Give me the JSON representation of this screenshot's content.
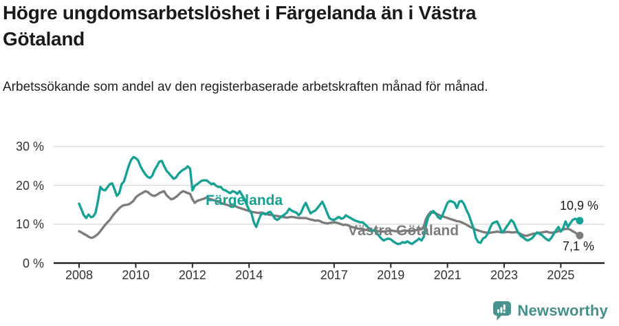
{
  "header": {
    "title": "Högre ungdomsarbetslöshet i Färgelanda än i Västra Götaland",
    "subtitle": "Arbetssökande som andel av den registerbaserade arbetskraften månad för månad."
  },
  "chart_data": {
    "type": "line",
    "title": "Högre ungdomsarbetslöshet i Färgelanda än i Västra Götaland",
    "subtitle": "Arbetssökande som andel av den registerbaserade arbetskraften månad för månad.",
    "unit": "%",
    "frequency": "monthly",
    "start": "2008-01",
    "end": "2025-09",
    "ylim": [
      0,
      30
    ],
    "yticks": [
      0,
      10,
      20,
      30
    ],
    "ytick_labels": [
      "0 %",
      "10 %",
      "20 %",
      "30 %"
    ],
    "xtick_years": [
      2008,
      2010,
      2012,
      2014,
      2017,
      2019,
      2021,
      2023,
      2025
    ],
    "xtick_labels": [
      "2008",
      "2010",
      "2012",
      "2014",
      "2017",
      "2019",
      "2021",
      "2023",
      "2025"
    ],
    "grid": "horizontal",
    "legend": "inline-series-labels",
    "colors": {
      "grid": "#DCDCDC",
      "axis": "#262626",
      "tick_text": "#333333"
    },
    "series": [
      {
        "name": "Färgelanda",
        "color": "#15A295",
        "end_label": "10,9 %",
        "end_value": 10.9,
        "values": [
          15.3,
          13.8,
          12.3,
          11.6,
          12.5,
          11.8,
          12.0,
          13.0,
          16.0,
          19.6,
          18.9,
          18.7,
          19.5,
          20.3,
          20.5,
          19.0,
          17.3,
          18.0,
          20.3,
          21.0,
          23.0,
          25.0,
          26.5,
          27.3,
          27.0,
          26.4,
          24.9,
          23.8,
          22.9,
          22.2,
          21.9,
          22.5,
          24.0,
          25.0,
          26.1,
          26.3,
          25.0,
          23.8,
          23.1,
          22.4,
          21.7,
          22.0,
          22.9,
          23.5,
          24.0,
          24.3,
          24.9,
          24.3,
          18.7,
          19.9,
          20.3,
          20.8,
          21.2,
          21.3,
          21.3,
          20.8,
          20.3,
          20.5,
          19.9,
          19.6,
          19.6,
          18.9,
          18.7,
          18.3,
          18.0,
          18.5,
          18.3,
          17.8,
          18.5,
          17.5,
          16.5,
          15.0,
          13.7,
          12.8,
          10.5,
          9.3,
          11.0,
          12.5,
          12.8,
          12.5,
          13.0,
          13.2,
          12.3,
          11.4,
          11.1,
          11.6,
          12.1,
          12.5,
          13.0,
          14.0,
          13.5,
          13.2,
          13.0,
          12.3,
          13.0,
          14.5,
          15.5,
          14.1,
          12.8,
          13.2,
          13.5,
          14.2,
          15.0,
          15.8,
          14.5,
          13.0,
          11.6,
          11.2,
          11.1,
          11.5,
          11.9,
          11.4,
          11.6,
          12.3,
          11.9,
          11.6,
          11.2,
          10.9,
          10.7,
          10.5,
          10.5,
          10.0,
          9.4,
          8.8,
          8.2,
          8.5,
          7.8,
          7.0,
          6.3,
          5.8,
          6.1,
          6.3,
          6.1,
          5.6,
          5.2,
          4.9,
          5.0,
          5.4,
          5.2,
          5.6,
          5.2,
          4.9,
          5.4,
          5.8,
          6.3,
          5.8,
          6.8,
          10.0,
          12.0,
          12.8,
          13.4,
          12.8,
          11.8,
          11.4,
          12.5,
          14.0,
          15.5,
          16.0,
          15.8,
          15.5,
          14.2,
          15.8,
          16.0,
          15.2,
          13.7,
          12.5,
          10.7,
          9.0,
          6.5,
          5.4,
          5.2,
          6.3,
          6.6,
          7.5,
          9.0,
          10.2,
          10.5,
          10.7,
          9.5,
          7.9,
          8.4,
          9.3,
          10.2,
          11.1,
          10.5,
          9.0,
          7.8,
          7.0,
          6.6,
          6.1,
          5.8,
          6.1,
          6.5,
          7.3,
          7.9,
          7.5,
          7.2,
          6.6,
          6.1,
          5.8,
          6.5,
          7.5,
          8.4,
          9.3,
          8.1,
          9.0,
          10.7,
          9.3,
          10.2,
          11.1,
          11.4,
          11.2,
          10.9
        ]
      },
      {
        "name": "Västra Götaland",
        "color": "#7C7C7C",
        "end_label": "7,1 %",
        "end_value": 7.1,
        "values": [
          8.2,
          7.9,
          7.5,
          7.2,
          6.8,
          6.5,
          6.6,
          7.0,
          7.5,
          8.2,
          9.0,
          9.8,
          10.5,
          11.1,
          12.0,
          12.8,
          13.4,
          14.1,
          14.6,
          14.9,
          15.0,
          15.1,
          15.5,
          16.0,
          16.9,
          17.4,
          17.8,
          18.1,
          18.5,
          18.3,
          17.8,
          17.4,
          17.3,
          17.6,
          18.0,
          18.3,
          18.5,
          17.5,
          16.9,
          16.4,
          16.6,
          17.0,
          17.5,
          18.1,
          18.5,
          18.3,
          18.0,
          17.8,
          16.4,
          15.5,
          16.0,
          16.2,
          16.4,
          16.6,
          16.9,
          16.6,
          16.4,
          16.2,
          16.0,
          15.8,
          15.5,
          15.3,
          15.1,
          14.9,
          14.7,
          14.9,
          14.7,
          14.4,
          14.2,
          14.0,
          13.8,
          13.6,
          13.4,
          13.2,
          13.1,
          13.0,
          12.9,
          13.0,
          12.9,
          12.7,
          12.5,
          12.4,
          12.3,
          12.2,
          12.1,
          12.0,
          11.9,
          11.8,
          11.7,
          11.8,
          11.9,
          11.8,
          11.7,
          11.6,
          11.6,
          11.6,
          11.6,
          11.4,
          11.2,
          11.1,
          10.9,
          11.0,
          10.8,
          10.5,
          10.3,
          10.2,
          10.3,
          10.4,
          10.5,
          10.4,
          10.2,
          10.0,
          9.8,
          9.9,
          9.7,
          9.4,
          9.2,
          9.0,
          8.9,
          8.8,
          8.7,
          8.6,
          8.5,
          8.4,
          8.3,
          8.4,
          8.3,
          8.2,
          8.1,
          8.1,
          8.2,
          8.3,
          8.4,
          8.3,
          8.2,
          8.2,
          8.1,
          8.3,
          8.4,
          8.3,
          8.2,
          8.3,
          8.4,
          8.5,
          8.6,
          8.7,
          9.5,
          11.5,
          12.5,
          13.2,
          13.0,
          12.8,
          12.5,
          12.2,
          12.0,
          11.8,
          11.6,
          11.4,
          11.2,
          11.0,
          10.8,
          10.7,
          10.5,
          10.2,
          9.9,
          9.5,
          9.2,
          8.9,
          8.6,
          8.4,
          8.2,
          8.0,
          7.9,
          7.8,
          7.8,
          7.9,
          8.0,
          8.1,
          8.0,
          7.9,
          7.9,
          8.0,
          8.0,
          7.9,
          7.9,
          8.0,
          7.8,
          7.5,
          7.2,
          7.0,
          7.1,
          7.3,
          7.5,
          7.6,
          7.7,
          7.8,
          7.9,
          8.0,
          8.1,
          7.9,
          7.8,
          7.9,
          8.0,
          8.2,
          8.4,
          8.6,
          8.8,
          8.8,
          8.6,
          8.2,
          7.9,
          7.4,
          7.1
        ]
      }
    ]
  },
  "footer": {
    "brand": "Newsworthy",
    "brand_color": "#45908C",
    "icon": "newsworthy-speech-bubble-chart-icon"
  }
}
